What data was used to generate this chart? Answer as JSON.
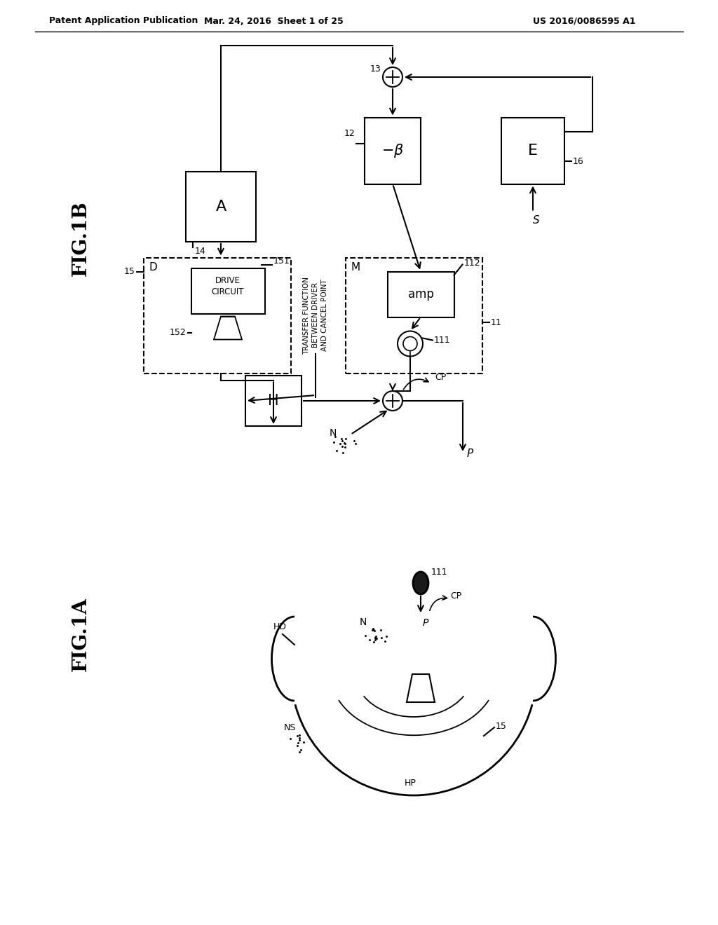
{
  "header_left": "Patent Application Publication",
  "header_mid": "Mar. 24, 2016  Sheet 1 of 25",
  "header_right": "US 2016/0086595 A1",
  "bg_color": "#ffffff",
  "lc": "#000000"
}
